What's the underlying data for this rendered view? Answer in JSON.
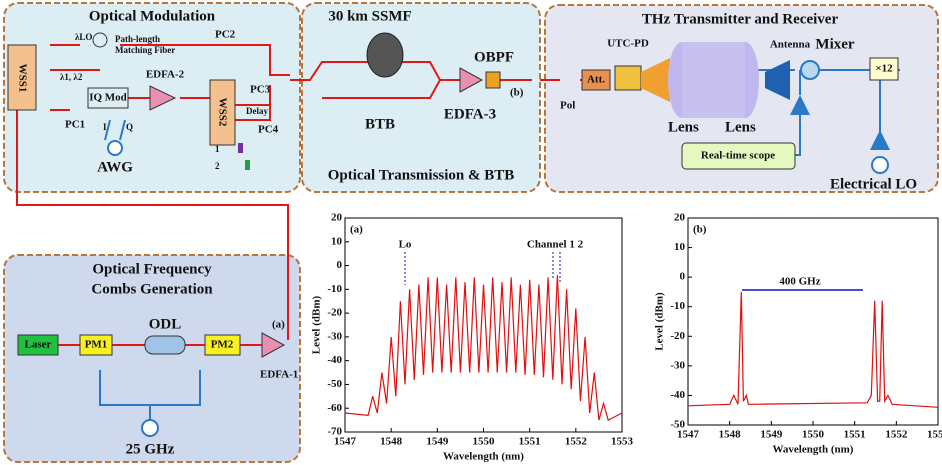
{
  "modulation": {
    "title": "Optical Modulation",
    "wss1": "WSS1",
    "lo": "λLO",
    "lambdas": "λ1, λ2",
    "path1": "Path-length",
    "path2": "Matching Fiber",
    "pc1": "PC1",
    "pc2": "PC2",
    "pc3": "PC3",
    "pc4": "PC4",
    "iq": "IQ Mod",
    "edfa": "EDFA-2",
    "wss2": "WSS2",
    "delay": "Delay",
    "i": "I",
    "q": "Q",
    "awg": "AWG",
    "one": "1",
    "two": "2"
  },
  "transmission": {
    "title": "Optical Transmission & BTB",
    "ssmf": "30 km SSMF",
    "btb": "BTB",
    "edfa": "EDFA-3",
    "obpf": "OBPF",
    "b": "(b)"
  },
  "thz": {
    "title": "THz Transmitter and Receiver",
    "pol": "Pol",
    "att": "Att.",
    "utc": "UTC-PD",
    "lens1": "Lens",
    "lens2": "Lens",
    "antenna": "Antenna",
    "mixer": "Mixer",
    "mult": "×12",
    "scope": "Real-time scope",
    "lo": "Electrical  LO"
  },
  "combs": {
    "title1": "Optical Frequency",
    "title2": "Combs Generation",
    "laser": "Laser",
    "pm1": "PM1",
    "odl": "ODL",
    "pm2": "PM2",
    "edfa": "EDFA-1",
    "a": "(a)",
    "rf": "25 GHz"
  },
  "chart_data": [
    {
      "type": "line",
      "label": "(a)",
      "x_label": "Wavelength (nm)",
      "y_label": "Level (dBm)",
      "color": "#e01010",
      "annotations": [
        "Lo",
        "Channel 1 2"
      ],
      "xlim": [
        1547,
        1553
      ],
      "xticks": [
        1547,
        1548,
        1549,
        1550,
        1551,
        1552,
        1553
      ],
      "ylim": [
        -70,
        20
      ],
      "yticks": [
        20,
        10,
        0,
        -10,
        -20,
        -30,
        -40,
        -50,
        -60,
        -70
      ],
      "x": [
        1547.0,
        1547.5,
        1547.6,
        1547.7,
        1547.8,
        1547.9,
        1548.0,
        1548.1,
        1548.2,
        1548.3,
        1548.4,
        1548.5,
        1548.6,
        1548.7,
        1548.8,
        1548.9,
        1549.0,
        1549.1,
        1549.2,
        1549.3,
        1549.4,
        1549.5,
        1549.6,
        1549.7,
        1549.8,
        1549.9,
        1550.0,
        1550.1,
        1550.2,
        1550.3,
        1550.4,
        1550.5,
        1550.6,
        1550.7,
        1550.8,
        1550.9,
        1551.0,
        1551.1,
        1551.2,
        1551.3,
        1551.4,
        1551.5,
        1551.6,
        1551.7,
        1551.8,
        1551.9,
        1552.0,
        1552.1,
        1552.2,
        1552.3,
        1552.4,
        1552.5,
        1552.6,
        1552.7,
        1553.0
      ],
      "values": [
        -62,
        -63,
        -55,
        -62,
        -45,
        -58,
        -30,
        -55,
        -15,
        -50,
        -10,
        -48,
        -8,
        -46,
        -5,
        -45,
        -5,
        -45,
        -8,
        -45,
        -5,
        -45,
        -7,
        -45,
        -5,
        -45,
        -8,
        -45,
        -5,
        -45,
        -7,
        -45,
        -5,
        -45,
        -8,
        -46,
        -6,
        -46,
        -8,
        -47,
        -5,
        -48,
        -4,
        -50,
        -10,
        -52,
        -18,
        -57,
        -30,
        -62,
        -45,
        -65,
        -58,
        -65,
        -62
      ]
    },
    {
      "type": "line",
      "label": "(b)",
      "x_label": "Wavelength (nm)",
      "y_label": "Level (dBm)",
      "color": "#e01010",
      "annotations": [
        "400 GHz"
      ],
      "xlim": [
        1547,
        1553
      ],
      "xticks": [
        1547,
        1548,
        1549,
        1550,
        1551,
        1552,
        1553
      ],
      "ylim": [
        -50,
        20
      ],
      "yticks": [
        20,
        10,
        0,
        -10,
        -20,
        -30,
        -40,
        -50
      ],
      "x": [
        1547.0,
        1548.0,
        1548.1,
        1548.2,
        1548.28,
        1548.33,
        1548.4,
        1548.45,
        1548.5,
        1551.3,
        1551.4,
        1551.48,
        1551.55,
        1551.6,
        1551.66,
        1551.72,
        1551.8,
        1551.9,
        1553.0
      ],
      "values": [
        -43.5,
        -43,
        -40,
        -43,
        -5,
        -42,
        -40,
        -43,
        -43,
        -42.5,
        -40,
        -8,
        -42,
        -42,
        -8,
        -42,
        -40,
        -43,
        -44
      ]
    }
  ]
}
